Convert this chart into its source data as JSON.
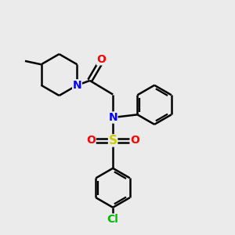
{
  "bg_color": "#ebebeb",
  "atom_colors": {
    "N": "#0000ff",
    "O": "#ff0000",
    "S": "#cccc00",
    "Cl": "#00bb00",
    "C": "#000000"
  },
  "bond_color": "#000000",
  "bond_width": 1.8,
  "font_size_atom": 10,
  "fig_w": 3.0,
  "fig_h": 3.0,
  "dpi": 100
}
